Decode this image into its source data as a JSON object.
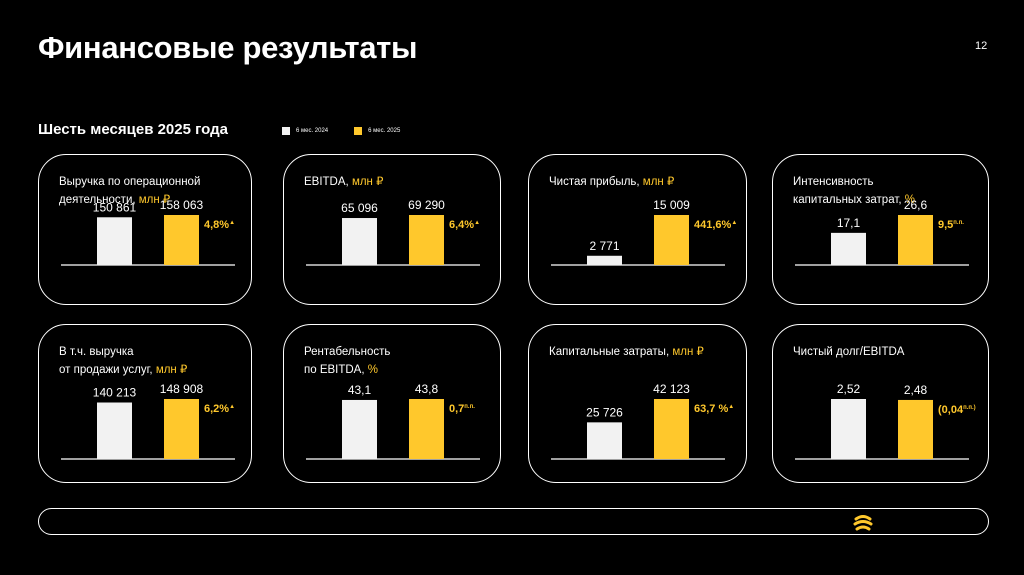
{
  "page": {
    "title": "Финансовые результаты",
    "page_number": "12",
    "subtitle": "Шесть месяцев 2025 года"
  },
  "legend": [
    {
      "label": "6 мес. 2024",
      "color": "#f2f2f2"
    },
    {
      "label": "6 мес. 2025",
      "color": "#ffc82c"
    }
  ],
  "colors": {
    "prev": "#f2f2f2",
    "curr": "#ffc82c",
    "background": "#000000"
  },
  "icons": [
    "beeline-logo-icon"
  ],
  "cards": [
    {
      "title": "Выручка по операционной\nдеятельности, ",
      "unit": "млн ₽",
      "labels": [
        "150 861",
        "158 063"
      ],
      "change": "4,8%",
      "change_mark": "▲"
    },
    {
      "title": "EBITDA, ",
      "unit": "млн ₽",
      "labels": [
        "65 096",
        "69 290"
      ],
      "change": "6,4%",
      "change_mark": "▲"
    },
    {
      "title": "Чистая прибыль, ",
      "unit": "млн ₽",
      "labels": [
        "2 771",
        "15 009"
      ],
      "change": "441,6%",
      "change_mark": "▲"
    },
    {
      "title": "Интенсивность\nкапитальных затрат, ",
      "unit": "%",
      "labels": [
        "17,1",
        "26,6"
      ],
      "change": "9,5",
      "change_mark": "п.п."
    },
    {
      "title": "В т.ч. выручка\nот продажи услуг, ",
      "unit": "млн ₽",
      "labels": [
        "140 213",
        "148 908"
      ],
      "change": "6,2%",
      "change_mark": "▲"
    },
    {
      "title": "Рентабельность\nпо EBITDA, ",
      "unit": "%",
      "labels": [
        "43,1",
        "43,8"
      ],
      "change": "0,7",
      "change_mark": "п.п."
    },
    {
      "title": "Капитальные затраты, ",
      "unit": "млн ₽",
      "labels": [
        "25 726",
        "42 123"
      ],
      "change": "63,7 %",
      "change_mark": "▲"
    },
    {
      "title": "Чистый долг/EBITDA",
      "unit": "",
      "labels": [
        "2,52",
        "2,48"
      ],
      "change": "(0,04",
      "change_mark": "п.п.)"
    }
  ],
  "chart_data": [
    {
      "type": "bar",
      "categories": [
        "6 мес. 2024",
        "6 мес. 2025"
      ],
      "values": [
        150861,
        158063
      ],
      "title": "Выручка по операционной деятельности, млн ₽"
    },
    {
      "type": "bar",
      "categories": [
        "6 мес. 2024",
        "6 мес. 2025"
      ],
      "values": [
        65096,
        69290
      ],
      "title": "EBITDA, млн ₽"
    },
    {
      "type": "bar",
      "categories": [
        "6 мес. 2024",
        "6 мес. 2025"
      ],
      "values": [
        2771,
        15009
      ],
      "title": "Чистая прибыль, млн ₽"
    },
    {
      "type": "bar",
      "categories": [
        "6 мес. 2024",
        "6 мес. 2025"
      ],
      "values": [
        17.1,
        26.6
      ],
      "title": "Интенсивность капитальных затрат, %"
    },
    {
      "type": "bar",
      "categories": [
        "6 мес. 2024",
        "6 мес. 2025"
      ],
      "values": [
        140213,
        148908
      ],
      "title": "В т.ч. выручка от продажи услуг, млн ₽"
    },
    {
      "type": "bar",
      "categories": [
        "6 мес. 2024",
        "6 мес. 2025"
      ],
      "values": [
        43.1,
        43.8
      ],
      "title": "Рентабельность по EBITDA, %"
    },
    {
      "type": "bar",
      "categories": [
        "6 мес. 2024",
        "6 мес. 2025"
      ],
      "values": [
        25726,
        42123
      ],
      "title": "Капитальные затраты, млн ₽"
    },
    {
      "type": "bar",
      "categories": [
        "6 мес. 2024",
        "6 мес. 2025"
      ],
      "values": [
        2.52,
        2.48
      ],
      "title": "Чистый долг/EBITDA"
    }
  ]
}
